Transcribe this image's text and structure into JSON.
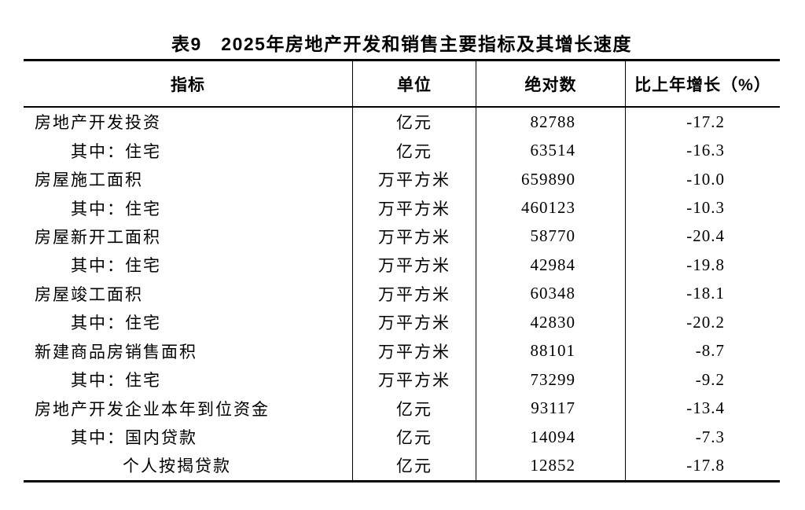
{
  "table": {
    "title": "表9　2025年房地产开发和销售主要指标及其增长速度",
    "columns": [
      "指标",
      "单位",
      "绝对数",
      "比上年增长（%）"
    ],
    "rows": [
      {
        "indicator": "房地产开发投资",
        "indent": 0,
        "unit": "亿元",
        "value": "82788",
        "growth": "-17.2"
      },
      {
        "indicator": "其中：住宅",
        "indent": 1,
        "unit": "亿元",
        "value": "63514",
        "growth": "-16.3"
      },
      {
        "indicator": "房屋施工面积",
        "indent": 0,
        "unit": "万平方米",
        "value": "659890",
        "growth": "-10.0"
      },
      {
        "indicator": "其中：住宅",
        "indent": 1,
        "unit": "万平方米",
        "value": "460123",
        "growth": "-10.3"
      },
      {
        "indicator": "房屋新开工面积",
        "indent": 0,
        "unit": "万平方米",
        "value": "58770",
        "growth": "-20.4"
      },
      {
        "indicator": "其中：住宅",
        "indent": 1,
        "unit": "万平方米",
        "value": "42984",
        "growth": "-19.8"
      },
      {
        "indicator": "房屋竣工面积",
        "indent": 0,
        "unit": "万平方米",
        "value": "60348",
        "growth": "-18.1"
      },
      {
        "indicator": "其中：住宅",
        "indent": 1,
        "unit": "万平方米",
        "value": "42830",
        "growth": "-20.2"
      },
      {
        "indicator": "新建商品房销售面积",
        "indent": 0,
        "unit": "万平方米",
        "value": "88101",
        "growth": "-8.7"
      },
      {
        "indicator": "其中：住宅",
        "indent": 1,
        "unit": "万平方米",
        "value": "73299",
        "growth": "-9.2"
      },
      {
        "indicator": "房地产开发企业本年到位资金",
        "indent": 0,
        "unit": "亿元",
        "value": "93117",
        "growth": "-13.4"
      },
      {
        "indicator": "其中：国内贷款",
        "indent": 1,
        "unit": "亿元",
        "value": "14094",
        "growth": "-7.3"
      },
      {
        "indicator": "个人按揭贷款",
        "indent": 2,
        "unit": "亿元",
        "value": "12852",
        "growth": "-17.8"
      }
    ]
  }
}
